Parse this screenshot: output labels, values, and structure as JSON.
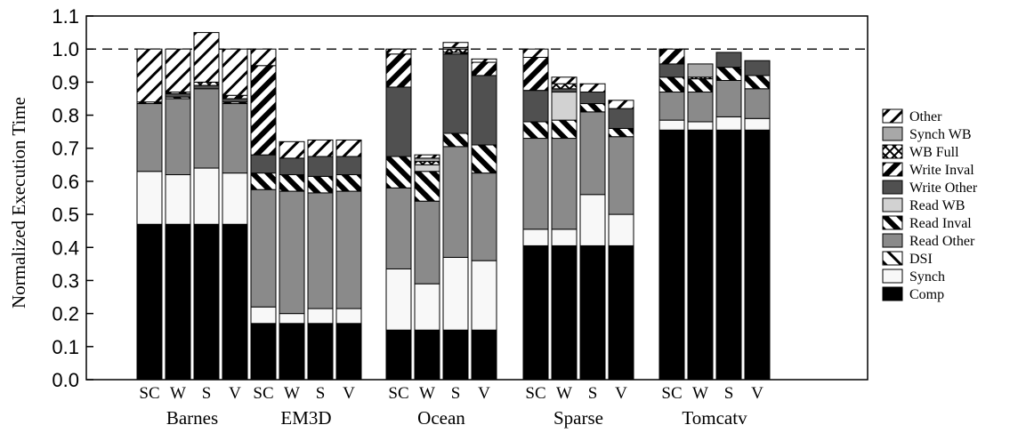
{
  "chart_data": {
    "type": "bar",
    "stacked": true,
    "title": "",
    "ylabel": "Normalized Execution Time",
    "xlabel": "",
    "ylim": [
      0,
      1.1
    ],
    "yticks": [
      "0.0",
      "0.1",
      "0.2",
      "0.3",
      "0.4",
      "0.5",
      "0.6",
      "0.7",
      "0.8",
      "0.9",
      "1.0",
      "1.1"
    ],
    "reference_line": 1.0,
    "grid": false,
    "legend_position": "right",
    "groups": [
      {
        "name": "Barnes",
        "bars": [
          {
            "label": "SC",
            "values": [
              0.47,
              0.16,
              0.0,
              0.205,
              0.0,
              0.0,
              0.0,
              0.005,
              0.0,
              0.0,
              0.16
            ]
          },
          {
            "label": "W",
            "values": [
              0.47,
              0.15,
              0.0,
              0.23,
              0.005,
              0.0,
              0.01,
              0.005,
              0.0,
              0.0,
              0.13
            ]
          },
          {
            "label": "S",
            "values": [
              0.47,
              0.17,
              0.0,
              0.24,
              0.0,
              0.0,
              0.01,
              0.0,
              0.01,
              0.0,
              0.15
            ]
          },
          {
            "label": "V",
            "values": [
              0.47,
              0.155,
              0.0,
              0.21,
              0.005,
              0.0,
              0.01,
              0.01,
              0.0,
              0.0,
              0.14
            ]
          }
        ]
      },
      {
        "name": "EM3D",
        "bars": [
          {
            "label": "SC",
            "values": [
              0.17,
              0.05,
              0.0,
              0.355,
              0.05,
              0.0,
              0.055,
              0.27,
              0.0,
              0.0,
              0.05
            ]
          },
          {
            "label": "W",
            "values": [
              0.17,
              0.03,
              0.0,
              0.37,
              0.05,
              0.0,
              0.05,
              0.0,
              0.0,
              0.0,
              0.05
            ]
          },
          {
            "label": "S",
            "values": [
              0.17,
              0.045,
              0.0,
              0.35,
              0.05,
              0.0,
              0.06,
              0.0,
              0.0,
              0.0,
              0.05
            ]
          },
          {
            "label": "V",
            "values": [
              0.17,
              0.045,
              0.0,
              0.355,
              0.05,
              0.0,
              0.055,
              0.0,
              0.0,
              0.0,
              0.05
            ]
          }
        ]
      },
      {
        "name": "Ocean",
        "bars": [
          {
            "label": "SC",
            "values": [
              0.15,
              0.185,
              0.0,
              0.245,
              0.095,
              0.0,
              0.21,
              0.1,
              0.0,
              0.0,
              0.015
            ]
          },
          {
            "label": "W",
            "values": [
              0.15,
              0.14,
              0.0,
              0.25,
              0.09,
              0.02,
              0.0,
              0.0,
              0.01,
              0.01,
              0.01
            ]
          },
          {
            "label": "S",
            "values": [
              0.15,
              0.22,
              0.0,
              0.335,
              0.04,
              0.0,
              0.24,
              0.005,
              0.01,
              0.005,
              0.015
            ]
          },
          {
            "label": "V",
            "values": [
              0.15,
              0.21,
              0.0,
              0.265,
              0.085,
              0.0,
              0.21,
              0.04,
              0.0,
              0.0,
              0.01
            ]
          }
        ]
      },
      {
        "name": "Sparse",
        "bars": [
          {
            "label": "SC",
            "values": [
              0.405,
              0.05,
              0.0,
              0.275,
              0.05,
              0.0,
              0.095,
              0.1,
              0.0,
              0.0,
              0.025
            ]
          },
          {
            "label": "W",
            "values": [
              0.405,
              0.05,
              0.0,
              0.275,
              0.055,
              0.085,
              0.01,
              0.0,
              0.015,
              0.0,
              0.02
            ]
          },
          {
            "label": "S",
            "values": [
              0.405,
              0.155,
              0.0,
              0.25,
              0.025,
              0.0,
              0.035,
              0.0,
              0.0,
              0.0,
              0.025
            ]
          },
          {
            "label": "V",
            "values": [
              0.405,
              0.095,
              0.0,
              0.235,
              0.025,
              0.0,
              0.06,
              0.0,
              0.0,
              0.0,
              0.025
            ]
          }
        ]
      },
      {
        "name": "Tomcatv",
        "bars": [
          {
            "label": "SC",
            "values": [
              0.755,
              0.03,
              0.0,
              0.085,
              0.045,
              0.0,
              0.04,
              0.045,
              0.0,
              0.0,
              0.0
            ]
          },
          {
            "label": "W",
            "values": [
              0.755,
              0.025,
              0.0,
              0.09,
              0.04,
              0.0,
              0.0,
              0.0,
              0.005,
              0.04,
              0.0
            ]
          },
          {
            "label": "S",
            "values": [
              0.755,
              0.04,
              0.0,
              0.11,
              0.04,
              0.0,
              0.045,
              0.0,
              0.0,
              0.0,
              0.0
            ]
          },
          {
            "label": "V",
            "values": [
              0.755,
              0.035,
              0.0,
              0.09,
              0.04,
              0.0,
              0.045,
              0.0,
              0.0,
              0.0,
              0.0
            ]
          }
        ]
      }
    ],
    "series": [
      {
        "name": "Comp",
        "fill": "solid",
        "color": "#000000"
      },
      {
        "name": "Synch",
        "fill": "solid",
        "color": "#f8f8f8"
      },
      {
        "name": "DSI",
        "fill": "hatch-thin-back",
        "color": "#000000"
      },
      {
        "name": "Read Other",
        "fill": "solid",
        "color": "#8a8a8a"
      },
      {
        "name": "Read Inval",
        "fill": "hatch-thick-back",
        "color": "#000000"
      },
      {
        "name": "Read WB",
        "fill": "solid",
        "color": "#d2d2d2"
      },
      {
        "name": "Write Other",
        "fill": "solid",
        "color": "#505050"
      },
      {
        "name": "Write Inval",
        "fill": "hatch-thick-forward",
        "color": "#000000"
      },
      {
        "name": "WB Full",
        "fill": "crosshatch",
        "color": "#000000"
      },
      {
        "name": "Synch WB",
        "fill": "solid",
        "color": "#a8a8a8"
      },
      {
        "name": "Other",
        "fill": "hatch-thin-forward",
        "color": "#000000"
      }
    ]
  }
}
